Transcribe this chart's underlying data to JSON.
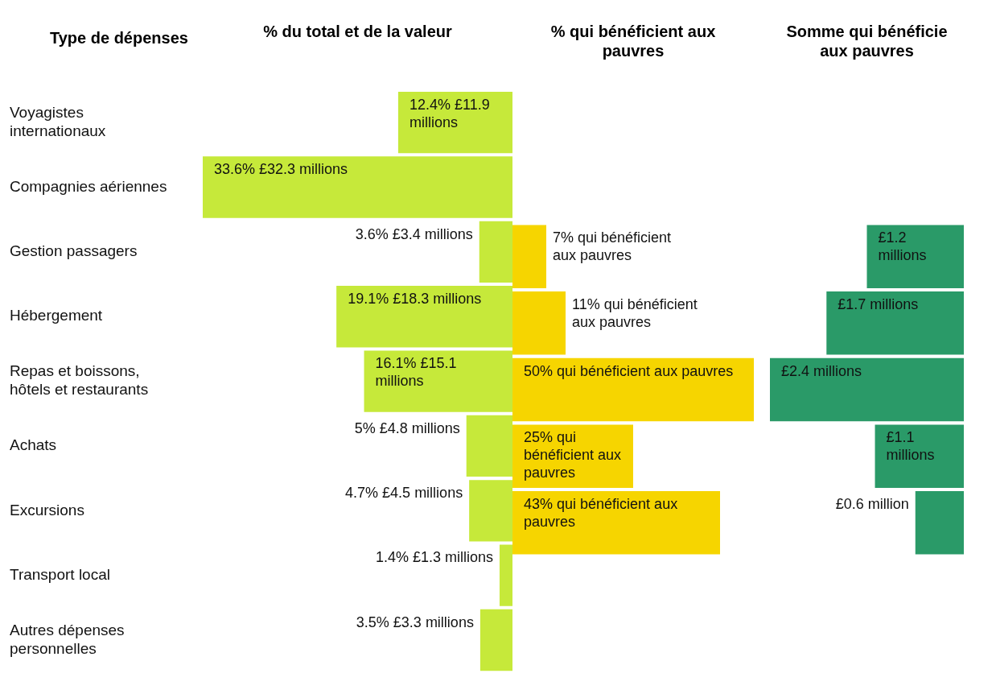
{
  "chart_data": [
    {
      "type": "bar",
      "orientation": "horizontal",
      "title": "% du total et de la valeur",
      "ylabel": "Type de dépenses",
      "tick_labels": "y",
      "color": "#c6e93a",
      "categories": [
        "Voyagistes internationaux",
        "Compagnies aériennes",
        "Gestion passagers",
        "Hébergement",
        "Repas et boissons, hôtels et restaurants",
        "Achats",
        "Excursions",
        "Transport local",
        "Autres dépenses personnelles"
      ],
      "values": [
        12.4,
        33.6,
        3.6,
        19.1,
        16.1,
        5,
        4.7,
        1.4,
        3.5
      ],
      "value_labels": [
        "12.4% £11.9 millions",
        "33.6% £32.3 millions",
        "3.6% £3.4 millions",
        "19.1% £18.3 millions",
        "16.1% £15.1 millions",
        "5% £4.8 millions",
        "4.7% £4.5 millions",
        "1.4% £1.3 millions",
        "3.5% £3.3 millions"
      ]
    },
    {
      "type": "bar",
      "orientation": "horizontal",
      "title": "% qui bénéficient aux pauvres",
      "tick_labels": false,
      "color": "#f6d500",
      "values": [
        null,
        null,
        7,
        11,
        50,
        25,
        43,
        null,
        null
      ],
      "value_labels": [
        null,
        null,
        "7% qui bénéficient aux pauvres",
        "11% qui bénéficient aux pauvres",
        "50% qui bénéficient aux pauvres",
        "25% qui bénéficient aux pauvres",
        "43% qui bénéficient aux pauvres",
        null,
        null
      ]
    },
    {
      "type": "bar",
      "orientation": "horizontal",
      "title": "Somme qui bénéficie aux pauvres",
      "tick_labels": false,
      "color": "#2a9a68",
      "values": [
        null,
        null,
        1.2,
        1.7,
        2.4,
        1.1,
        0.6,
        null,
        null
      ],
      "value_labels": [
        null,
        null,
        "£1.2 millions",
        "£1.7 millions",
        "£2.4 millions",
        "£1.1 millions",
        "£0.6 million",
        null,
        null
      ]
    }
  ]
}
